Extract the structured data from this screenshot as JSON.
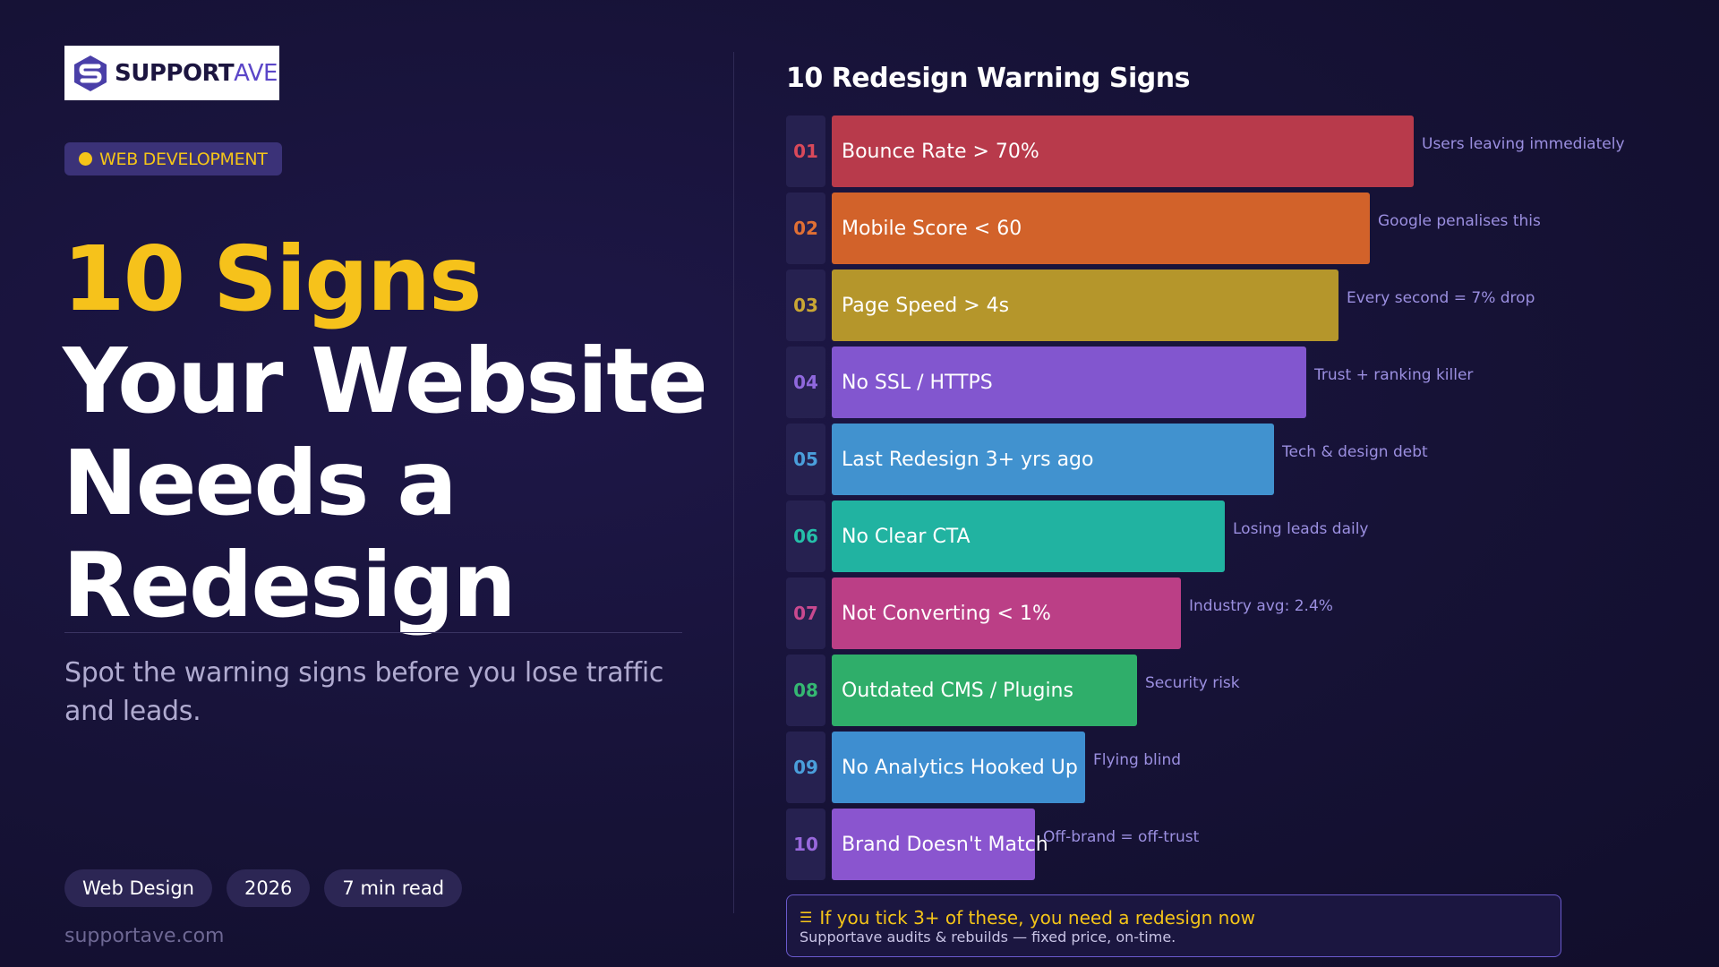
{
  "brand": {
    "logo_text_bold": "SUPPORT",
    "logo_text_light": "AVE",
    "site": "supportave.com"
  },
  "category": {
    "label": "WEB DEVELOPMENT",
    "dot_color": "#f5c518"
  },
  "headline": {
    "line1": "10 Signs",
    "line2": "Your Website",
    "line3": "Needs a",
    "line4": "Redesign"
  },
  "subtitle": "Spot the warning signs before you lose traffic and leads.",
  "tags": [
    "Web Design",
    "2026",
    "7 min read"
  ],
  "chart_data": {
    "type": "bar",
    "orientation": "horizontal",
    "title": "10 Redesign Warning Signs",
    "categories": [
      "Bounce Rate > 70%",
      "Mobile Score < 60",
      "Page Speed > 4s",
      "No SSL / HTTPS",
      "Last Redesign 3+ yrs ago",
      "No Clear CTA",
      "Not Converting < 1%",
      "Outdated CMS / Plugins",
      "No Analytics Hooked Up",
      "Brand Doesn't Match"
    ],
    "rank_labels": [
      "01",
      "02",
      "03",
      "04",
      "05",
      "06",
      "07",
      "08",
      "09",
      "10"
    ],
    "values": [
      100,
      92.5,
      87,
      81.5,
      76,
      67.5,
      60,
      52.5,
      43.5,
      35
    ],
    "annotations": [
      "Users leaving immediately",
      "Google penalises this",
      "Every second = 7% drop",
      "Trust + ranking killer",
      "Tech & design debt",
      "Losing leads daily",
      "Industry avg: 2.4%",
      "Security risk",
      "Flying blind",
      "Off-brand = off-trust"
    ],
    "colors": [
      "#b83a4b",
      "#d2622a",
      "#b5962b",
      "#8256cf",
      "#4192cf",
      "#21b3a1",
      "#bb3f86",
      "#2fae6a",
      "#3e8ed0",
      "#8a55cf"
    ],
    "number_colors": [
      "#d9495a",
      "#e06f34",
      "#c9a634",
      "#8f68dd",
      "#4a9edb",
      "#25bfa9",
      "#c9498f",
      "#35b872",
      "#4a9edb",
      "#9868dc"
    ],
    "grid": false,
    "legend": "none"
  },
  "callout": {
    "icon": "list-icon",
    "headline": "If you tick 3+ of these, you need a redesign now",
    "detail": "Supportave audits & rebuilds — fixed price, on-time."
  },
  "colors": {
    "accent_yellow": "#f6c21b",
    "background": "#161236",
    "note_text": "#9b8fe0"
  }
}
